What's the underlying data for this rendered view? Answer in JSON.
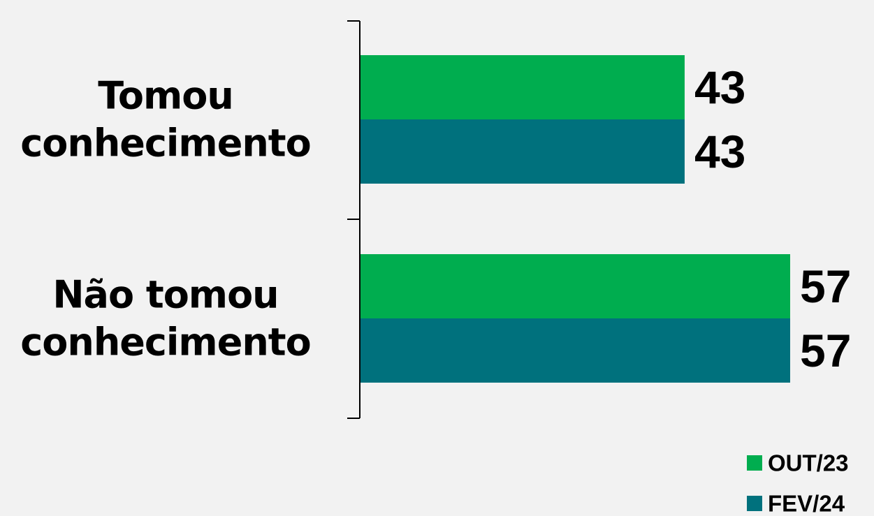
{
  "chart_data": {
    "type": "bar",
    "orientation": "horizontal",
    "categories": [
      "Tomou\nconhecimento",
      "Não tomou\nconhecimento"
    ],
    "series": [
      {
        "name": "OUT/23",
        "color": "#00ad4f",
        "values": [
          43,
          57
        ]
      },
      {
        "name": "FEV/24",
        "color": "#00717d",
        "values": [
          43,
          57
        ]
      }
    ],
    "xlim": [
      0,
      100
    ],
    "title": "",
    "xlabel": "",
    "ylabel": "",
    "grid": false,
    "data_labels": true,
    "legend_position": "bottom-right"
  }
}
